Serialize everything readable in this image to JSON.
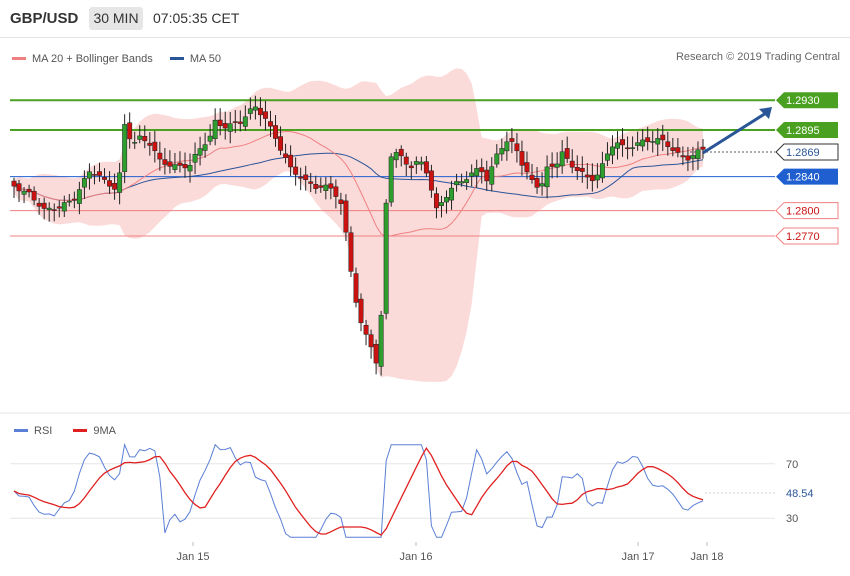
{
  "header": {
    "symbol": "GBP/USD",
    "timeframe": "30 MIN",
    "time": "07:05:35 CET"
  },
  "legend": {
    "items": [
      {
        "label": "MA 20 + Bollinger Bands",
        "color": "#f08080"
      },
      {
        "label": "MA 50",
        "color": "#2a5597"
      }
    ],
    "credit": "Research © 2019 Trading Central"
  },
  "rsi_legend": {
    "items": [
      {
        "label": "RSI",
        "color": "#5b7fd6"
      },
      {
        "label": "9MA",
        "color": "#e02020"
      }
    ]
  },
  "colors": {
    "up": "#2e9e2e",
    "down": "#cc1111",
    "resistance": "#4aa020",
    "support": "#1f5fd0",
    "target": "#f08080",
    "band": "#fbdada",
    "arrow": "#2a5597"
  },
  "chart_data": [
    {
      "type": "candlestick",
      "title": "GBP/USD 30 MIN",
      "ylim": [
        1.2565,
        1.2968
      ],
      "x_tick_labels": [
        "Jan 15",
        "Jan 16",
        "Jan 17",
        "Jan 18"
      ],
      "levels": [
        {
          "label": "1.2930",
          "value": 1.293,
          "kind": "resistance"
        },
        {
          "label": "1.2895",
          "value": 1.2895,
          "kind": "resistance"
        },
        {
          "label": "1.2869",
          "value": 1.2869,
          "kind": "current"
        },
        {
          "label": "1.2840",
          "value": 1.284,
          "kind": "support"
        },
        {
          "label": "1.2800",
          "value": 1.28,
          "kind": "target"
        },
        {
          "label": "1.2770",
          "value": 1.277,
          "kind": "target"
        }
      ],
      "series": [
        {
          "name": "MA 20 + Bollinger Bands"
        },
        {
          "name": "MA 50"
        }
      ],
      "forecast_arrow": {
        "from": 1.2868,
        "to": 1.2922
      }
    },
    {
      "type": "line",
      "series": [
        {
          "name": "RSI",
          "last": "48.54"
        },
        {
          "name": "9MA"
        }
      ],
      "ylim": [
        14,
        86
      ],
      "y_ticks": [
        "70",
        "30"
      ]
    }
  ]
}
